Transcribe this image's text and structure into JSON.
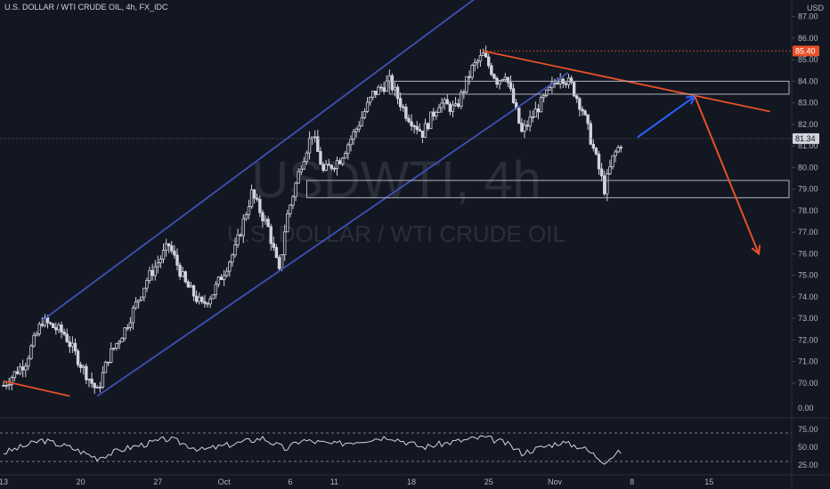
{
  "header": {
    "title": "U.S. DOLLAR / WTI CRUDE OIL, 4h, FX_IDC"
  },
  "watermark": {
    "symbol": "USDWTI, 4h",
    "name": "U.S. DOLLAR / WTI CRUDE OIL"
  },
  "currency_label": "USD",
  "colors": {
    "background": "#131722",
    "channel": "#3f51b5",
    "resistance": "#e65127",
    "arrow_up": "#2962ff",
    "arrow_down": "#e65127",
    "candle": "#d1d4dc",
    "level_line": "#b2b5be",
    "badge_red": "#e65127",
    "badge_price": "#d1d4dc"
  },
  "chart_data": [
    {
      "type": "candlestick",
      "title": "U.S. DOLLAR / WTI CRUDE OIL, 4h, FX_IDC",
      "y_axis": {
        "unit": "USD",
        "range": [
          69.0,
          87.2
        ],
        "ticks": [
          "70.00",
          "71.00",
          "72.00",
          "73.00",
          "74.00",
          "75.00",
          "76.00",
          "77.00",
          "78.00",
          "79.00",
          "80.00",
          "81.00",
          "82.00",
          "83.00",
          "84.00",
          "85.00",
          "86.00",
          "87.00"
        ]
      },
      "x_axis": {
        "ticks": [
          "13",
          "20",
          "27",
          "Oct",
          "6",
          "11",
          "18",
          "25",
          "Nov",
          "8",
          "15"
        ]
      },
      "badges": {
        "high": "85.40",
        "last": "81.34"
      },
      "last_price": 81.34,
      "high_price": 85.4,
      "path": [
        [
          13,
          69.9
        ],
        [
          15,
          71.0
        ],
        [
          16.5,
          72.9
        ],
        [
          18.5,
          72.3
        ],
        [
          20.3,
          70.6
        ],
        [
          21.5,
          69.6
        ],
        [
          22.5,
          71.2
        ],
        [
          24,
          72.5
        ],
        [
          26,
          74.8
        ],
        [
          28,
          76.4
        ],
        [
          29.5,
          74.6
        ],
        [
          31,
          73.6
        ],
        [
          32,
          74.2
        ],
        [
          34,
          76.2
        ],
        [
          35.5,
          78.8
        ],
        [
          37,
          77.2
        ],
        [
          38,
          75.1
        ],
        [
          38.6,
          77.5
        ],
        [
          40,
          80.2
        ],
        [
          41,
          81.6
        ],
        [
          42,
          79.8
        ],
        [
          43.5,
          80.4
        ],
        [
          45,
          81.8
        ],
        [
          46.5,
          83.4
        ],
        [
          48,
          84.0
        ],
        [
          49.5,
          82.5
        ],
        [
          51,
          81.6
        ],
        [
          52.5,
          83.0
        ],
        [
          54,
          82.7
        ],
        [
          55.5,
          84.6
        ],
        [
          56.5,
          85.2
        ],
        [
          57.8,
          84.0
        ],
        [
          58.5,
          84.4
        ],
        [
          60,
          81.6
        ],
        [
          61.5,
          82.8
        ],
        [
          63.5,
          84.3
        ],
        [
          64.5,
          83.8
        ],
        [
          65.5,
          82.7
        ],
        [
          66.8,
          80.3
        ],
        [
          67.5,
          79.0
        ],
        [
          68.3,
          80.5
        ],
        [
          69.2,
          81.3
        ]
      ],
      "channel": {
        "lower": [
          [
            21.5,
            69.4
          ],
          [
            64.2,
            84.4
          ]
        ],
        "upper": [
          [
            16.5,
            72.9
          ],
          [
            62,
            90.2
          ]
        ]
      },
      "resistance_line": {
        "points": [
          [
            56.5,
            85.4
          ],
          [
            82.5,
            82.6
          ]
        ]
      },
      "support_line": {
        "points": [
          [
            13,
            70.1
          ],
          [
            19,
            69.4
          ]
        ]
      },
      "horizontal_levels": [
        84.0,
        83.4,
        79.4,
        78.6
      ],
      "projection": {
        "up": [
          [
            70.5,
            81.4
          ],
          [
            75.7,
            83.3
          ]
        ],
        "down": [
          [
            75.7,
            83.3
          ],
          [
            81.5,
            76.0
          ]
        ]
      }
    },
    {
      "type": "line",
      "title": "",
      "y_axis": {
        "range": [
          22,
          77
        ],
        "ticks": [
          "0.00",
          "25.00",
          "50.00",
          "75.00"
        ],
        "levels": [
          70,
          30
        ]
      },
      "x_axis": {
        "ticks": [
          "13",
          "20",
          "27",
          "Oct",
          "6",
          "11",
          "18",
          "25",
          "Nov",
          "8",
          "15"
        ]
      },
      "path": [
        [
          13,
          42
        ],
        [
          16.5,
          60
        ],
        [
          19,
          50
        ],
        [
          21.5,
          35
        ],
        [
          24,
          48
        ],
        [
          28,
          62
        ],
        [
          31,
          46
        ],
        [
          34,
          55
        ],
        [
          36.5,
          63
        ],
        [
          38.6,
          47
        ],
        [
          40,
          60
        ],
        [
          43,
          54
        ],
        [
          46.5,
          62
        ],
        [
          48,
          65
        ],
        [
          51,
          50
        ],
        [
          54,
          58
        ],
        [
          56.5,
          64
        ],
        [
          58.5,
          56
        ],
        [
          60,
          42
        ],
        [
          63.5,
          57
        ],
        [
          65.5,
          50
        ],
        [
          67.5,
          30
        ],
        [
          68.3,
          38
        ],
        [
          69.2,
          46
        ]
      ]
    }
  ]
}
